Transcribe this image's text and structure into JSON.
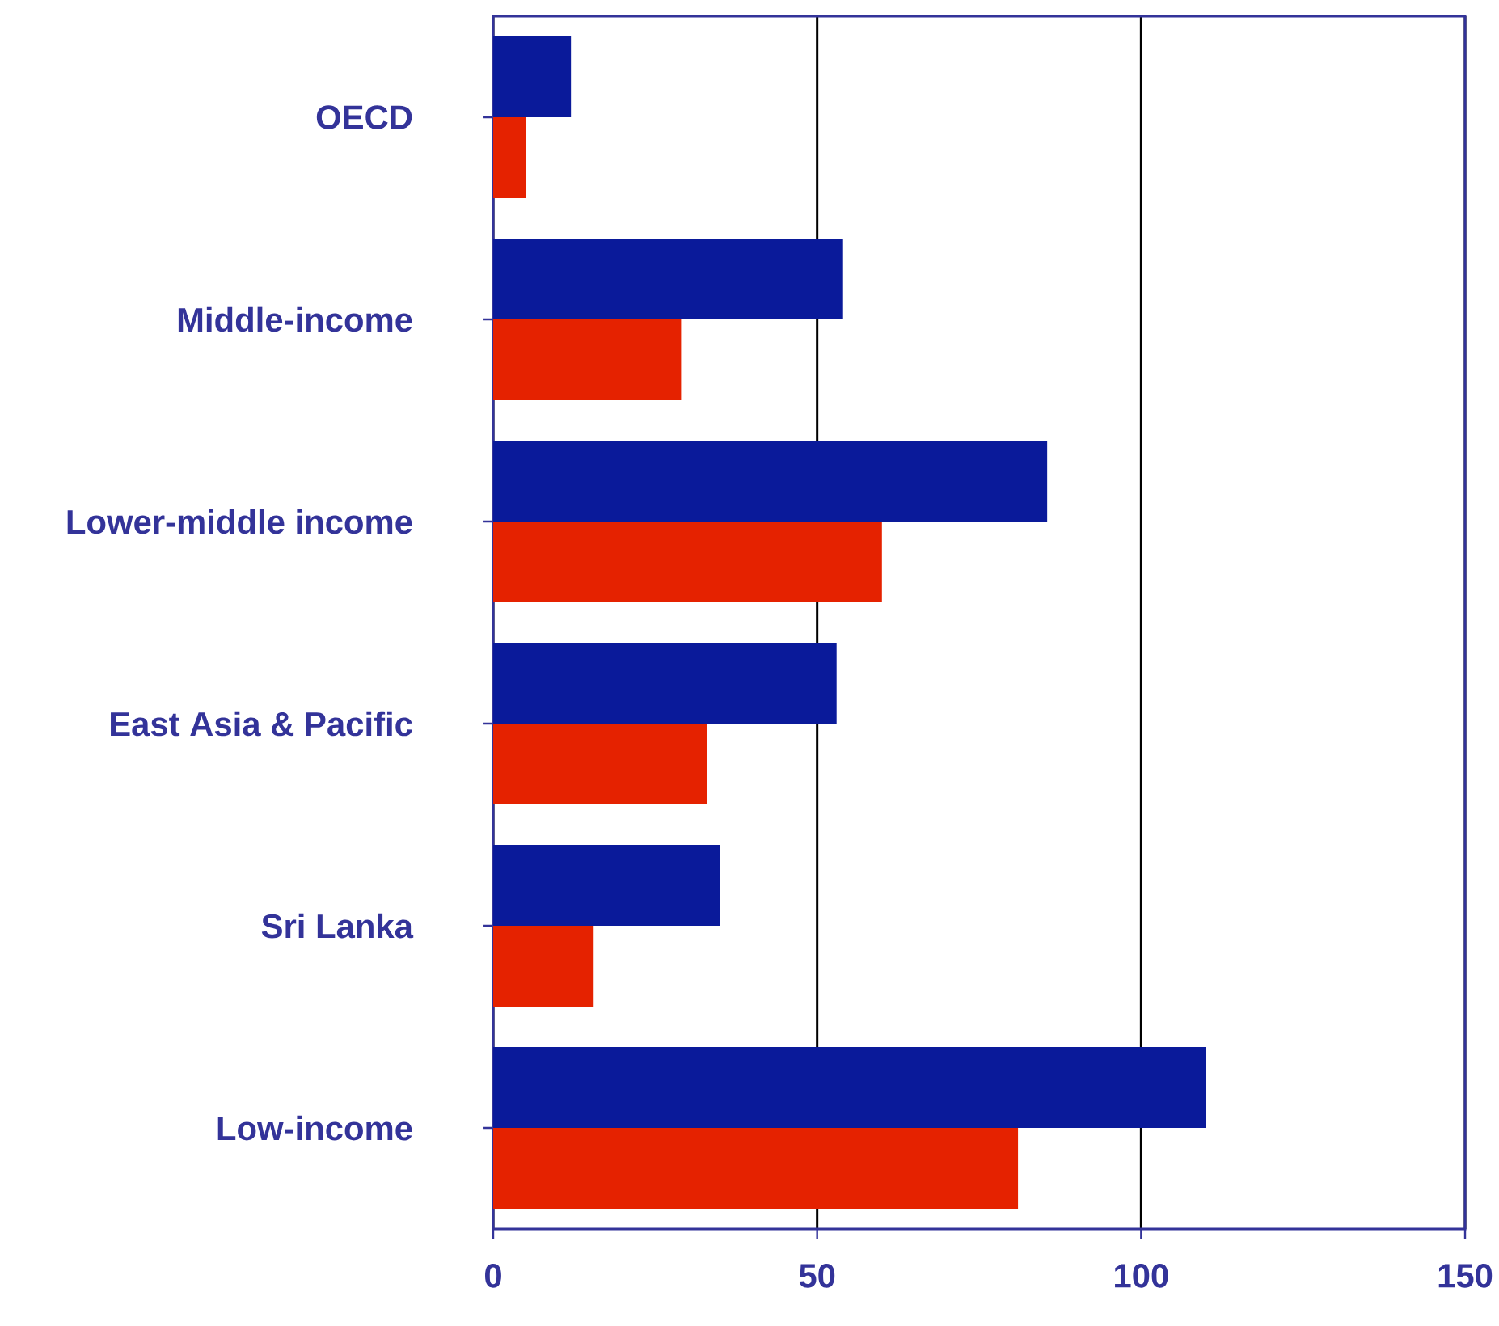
{
  "chart_data": {
    "type": "bar",
    "orientation": "horizontal",
    "categories": [
      "OECD",
      "Middle-income",
      "Lower-middle income",
      "East Asia & Pacific",
      "Sri Lanka",
      "Low-income"
    ],
    "series": [
      {
        "color": "#0a1a9a",
        "values": [
          12,
          54,
          85.5,
          53,
          35,
          110
        ]
      },
      {
        "color": "#e52200",
        "values": [
          5,
          29,
          60,
          33,
          15.5,
          81
        ]
      }
    ],
    "xlim": [
      0,
      150
    ],
    "xticks": [
      0,
      50,
      100,
      150
    ],
    "grid": "x"
  }
}
